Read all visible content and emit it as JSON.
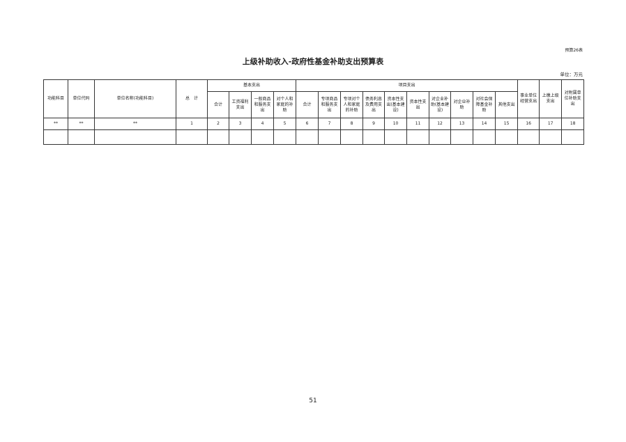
{
  "table_no": "预算26表",
  "title": "上级补助收入-政府性基金补助支出预算表",
  "unit": "单位：万元",
  "headers": {
    "func_subject": "功能科目",
    "unit_code": "单位代码",
    "unit_name": "单位名称(功能科目)",
    "total": "总　计",
    "basic_group": "基本支出",
    "project_group": "项目支出",
    "basic": [
      "合计",
      "工资福利支出",
      "一般商品和服务支出",
      "对个人和家庭的补助"
    ],
    "project": [
      "合计",
      "专项商品和服务支出",
      "专项对个人和家庭的补助",
      "债务利息及费用支出",
      "资本性支出(基本建设)",
      "资本性支出",
      "对企业补助(基本建设)",
      "对企业补助",
      "对社会保障基金补助",
      "其他支出"
    ],
    "other": [
      "事业单位经营支出",
      "上缴上级支出",
      "对附属单位补助支出"
    ]
  },
  "index_row": [
    "**",
    "**",
    "**",
    "1",
    "2",
    "3",
    "4",
    "5",
    "6",
    "7",
    "8",
    "9",
    "10",
    "11",
    "12",
    "13",
    "14",
    "15",
    "16",
    "17",
    "18"
  ],
  "page_number": "51"
}
